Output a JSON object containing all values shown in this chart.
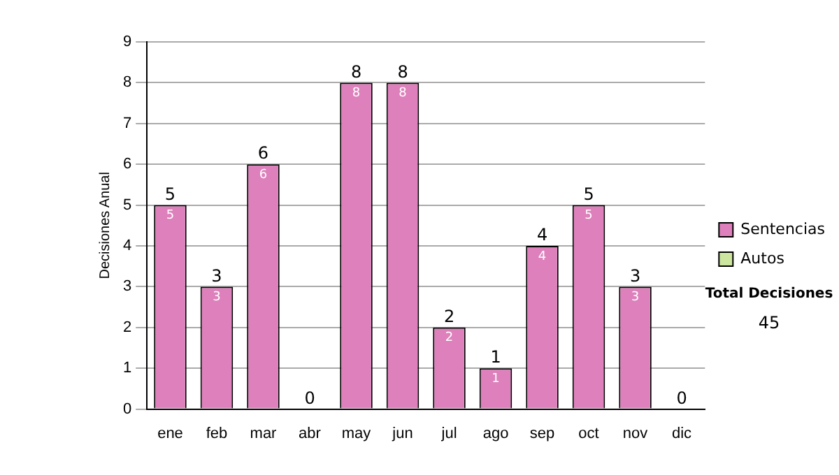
{
  "chart_data": {
    "type": "bar",
    "ylabel": "Decisiones Anual",
    "categories": [
      "ene",
      "feb",
      "mar",
      "abr",
      "may",
      "jun",
      "jul",
      "ago",
      "sep",
      "oct",
      "nov",
      "dic"
    ],
    "stacked": true,
    "series": [
      {
        "name": "Sentencias",
        "color": "#dd80bb",
        "values": [
          5,
          3,
          6,
          0,
          8,
          8,
          2,
          1,
          4,
          5,
          3,
          0
        ],
        "value_labels": [
          "5",
          "3",
          "6",
          null,
          "8",
          "8",
          "2",
          "1",
          "4",
          "5",
          "3",
          null
        ]
      },
      {
        "name": "Autos",
        "color": "#cce6a0",
        "values": [
          0,
          0,
          0,
          0,
          0,
          0,
          0,
          0,
          0,
          0,
          0,
          0
        ]
      }
    ],
    "totals": [
      "5",
      "3",
      "6",
      "0",
      "8",
      "8",
      "2",
      "1",
      "4",
      "5",
      "3",
      "0"
    ],
    "ylim": [
      0,
      9
    ],
    "yticks": [
      0,
      1,
      2,
      3,
      4,
      5,
      6,
      7,
      8,
      9
    ],
    "grid": "y",
    "legend": "right",
    "annotations": [
      "Total Decisiones",
      "45"
    ]
  }
}
